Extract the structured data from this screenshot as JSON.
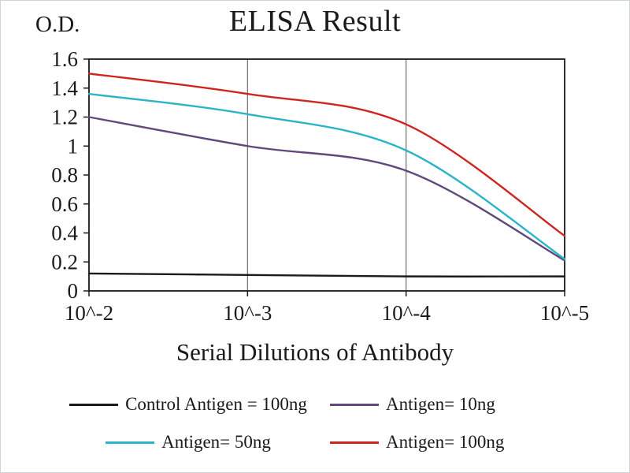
{
  "chart_data": {
    "type": "line",
    "title": "ELISA Result",
    "xlabel": "Serial Dilutions of Antibody",
    "ylabel": "O.D.",
    "categories": [
      "10^-2",
      "10^-3",
      "10^-4",
      "10^-5"
    ],
    "ylim": [
      0,
      1.6
    ],
    "yticks": [
      "0",
      "0.2",
      "0.4",
      "0.6",
      "0.8",
      "1",
      "1.2",
      "1.4",
      "1.6"
    ],
    "grid": "vertical-major-only",
    "legend_position": "bottom",
    "axis_color": "#1a1a1a",
    "gridline_color": "#6e6e6e",
    "series": [
      {
        "name": "Control Antigen = 100ng",
        "color": "#1a1a1a",
        "values": [
          0.12,
          0.11,
          0.1,
          0.1
        ]
      },
      {
        "name": "Antigen= 10ng",
        "color": "#5f497a",
        "values": [
          1.2,
          1.0,
          0.83,
          0.21
        ]
      },
      {
        "name": "Antigen= 50ng",
        "color": "#2bb3c7",
        "values": [
          1.36,
          1.22,
          0.97,
          0.22
        ]
      },
      {
        "name": "Antigen= 100ng",
        "color": "#cd2621",
        "values": [
          1.5,
          1.36,
          1.15,
          0.38
        ]
      }
    ]
  }
}
